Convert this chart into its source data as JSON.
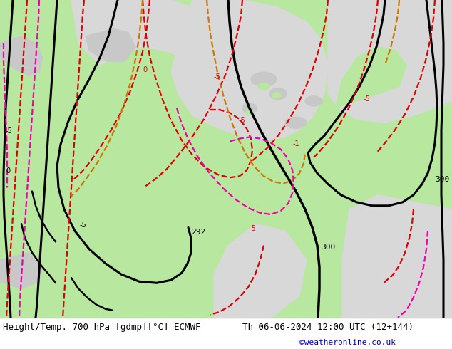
{
  "title_left": "Height/Temp. 700 hPa [gdmp][°C] ECMWF",
  "title_right": "Th 06-06-2024 12:00 UTC (12+144)",
  "credit": "©weatheronline.co.uk",
  "credit_color": "#0000cc",
  "bg_color": "#ffffff",
  "green_land": "#b8e8a0",
  "gray_land": "#c8c8c8",
  "sea_color": "#d8d8d8",
  "footer_text_color": "#000000",
  "footer_fontsize": 9,
  "credit_fontsize": 8,
  "black_lw": 2.2,
  "red_lw": 1.6,
  "orange_lw": 1.6,
  "pink_lw": 1.6
}
